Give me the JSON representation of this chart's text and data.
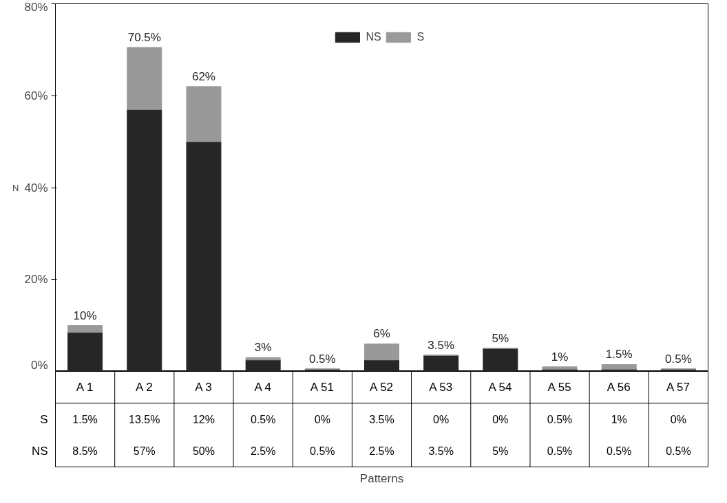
{
  "chart_data": {
    "type": "bar",
    "stacked": true,
    "annotations": [
      "Patterns"
    ],
    "ylabel": "N",
    "categories": [
      "A 1",
      "A 2",
      "A 3",
      "A 4",
      "A 51",
      "A 52",
      "A 53",
      "A 54",
      "A 55",
      "A 56",
      "A 57"
    ],
    "series": [
      {
        "name": "NS",
        "color": "#262626",
        "values": [
          8.5,
          57,
          50,
          2.5,
          0.5,
          2.5,
          3.5,
          5,
          0.5,
          0.5,
          0.5
        ],
        "value_labels": [
          "8.5%",
          "57%",
          "50%",
          "2.5%",
          "0.5%",
          "2.5%",
          "3.5%",
          "5%",
          "0.5%",
          "0.5%",
          "0.5%"
        ]
      },
      {
        "name": "S",
        "color": "#999999",
        "values": [
          1.5,
          13.5,
          12,
          0.5,
          0,
          3.5,
          0,
          0,
          0.5,
          1,
          0
        ],
        "value_labels": [
          "1.5%",
          "13.5%",
          "12%",
          "0.5%",
          "0%",
          "3.5%",
          "0%",
          "0%",
          "0.5%",
          "1%",
          "0%"
        ]
      }
    ],
    "totals": [
      "10%",
      "70.5%",
      "62%",
      "3%",
      "0.5%",
      "6%",
      "3.5%",
      "5%",
      "1%",
      "1.5%",
      "0.5%"
    ],
    "ylim": [
      0,
      80
    ],
    "yticks": [
      {
        "value": 0,
        "label": "0%"
      },
      {
        "value": 20,
        "label": "20%"
      },
      {
        "value": 40,
        "label": "40%"
      },
      {
        "value": 60,
        "label": "60%"
      },
      {
        "value": 80,
        "label": "80%"
      }
    ],
    "legend": "top",
    "grid": false
  }
}
